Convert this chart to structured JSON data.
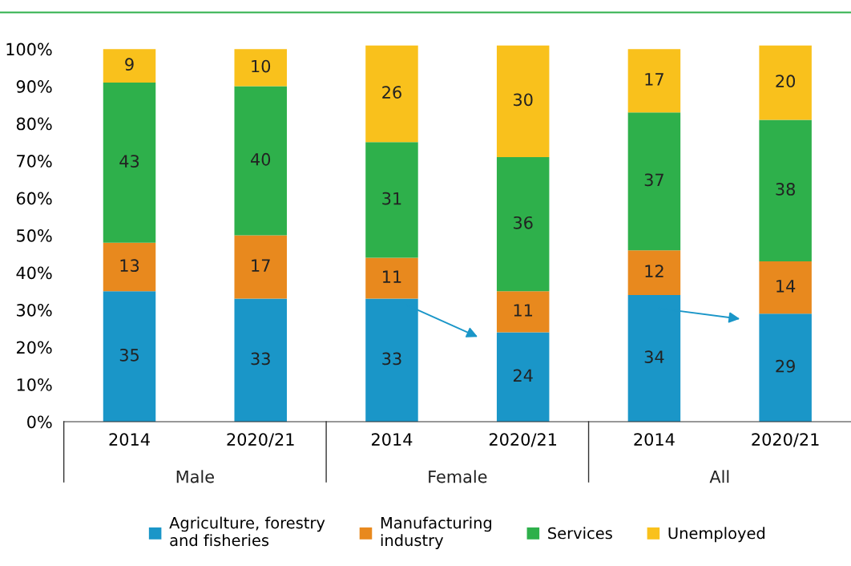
{
  "chart_data": {
    "type": "bar",
    "stacked": true,
    "data_labels": true,
    "categories": [
      "2014",
      "2020/21",
      "2014",
      "2020/21",
      "2014",
      "2020/21"
    ],
    "series": [
      {
        "name": "Agriculture, forestry\nand fisheries",
        "color": "#1a96c8",
        "values": [
          35,
          33,
          33,
          24,
          34,
          29
        ]
      },
      {
        "name": "Manufacturing\nindustry",
        "color": "#e8891e",
        "values": [
          13,
          17,
          11,
          11,
          12,
          14
        ]
      },
      {
        "name": "Services",
        "color": "#2eb04b",
        "values": [
          43,
          40,
          31,
          36,
          37,
          38
        ]
      },
      {
        "name": "Unemployed",
        "color": "#f9c11c",
        "values": [
          9,
          10,
          26,
          30,
          17,
          20
        ]
      }
    ],
    "ylim": [
      0,
      101
    ],
    "yticks": [
      {
        "value": 0,
        "label": "0%"
      },
      {
        "value": 10,
        "label": "10%"
      },
      {
        "value": 20,
        "label": "20%"
      },
      {
        "value": 30,
        "label": "30%"
      },
      {
        "value": 40,
        "label": "40%"
      },
      {
        "value": 50,
        "label": "50%"
      },
      {
        "value": 60,
        "label": "60%"
      },
      {
        "value": 70,
        "label": "70%"
      },
      {
        "value": 80,
        "label": "80%"
      },
      {
        "value": 90,
        "label": "90%"
      },
      {
        "value": 100,
        "label": "100%"
      }
    ],
    "annotations": [
      "Male",
      "Female",
      "All"
    ],
    "grid": false,
    "legend": "bottom"
  }
}
